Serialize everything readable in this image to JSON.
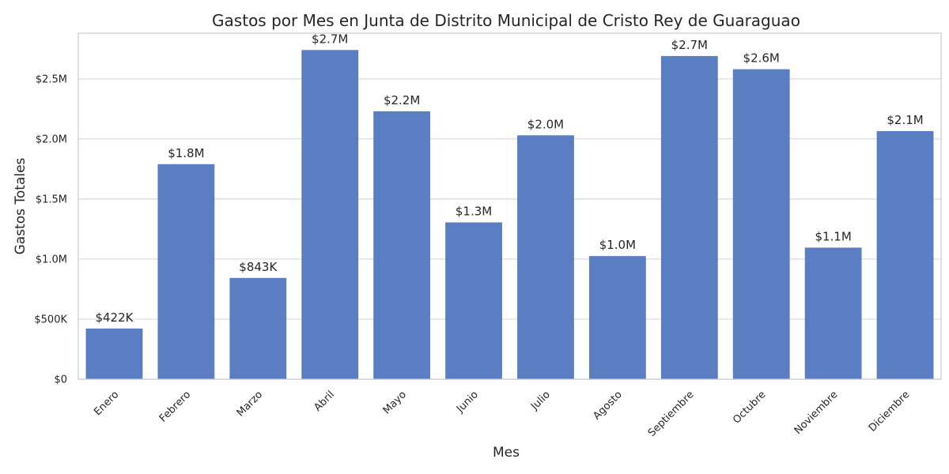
{
  "chart_data": {
    "type": "bar",
    "title": "Gastos por Mes en Junta de Distrito Municipal de Cristo Rey de Guaraguao",
    "xlabel": "Mes",
    "ylabel": "Gastos Totales",
    "categories": [
      "Enero",
      "Febrero",
      "Marzo",
      "Abril",
      "Mayo",
      "Junio",
      "Julio",
      "Agosto",
      "Septiembre",
      "Octubre",
      "Noviembre",
      "Diciembre"
    ],
    "values": [
      422000,
      1790000,
      843000,
      2740000,
      2230000,
      1305000,
      2030000,
      1025000,
      2690000,
      2580000,
      1095000,
      2065000
    ],
    "value_labels": [
      "$422K",
      "$1.8M",
      "$843K",
      "$2.7M",
      "$2.2M",
      "$1.3M",
      "$2.0M",
      "$1.0M",
      "$2.7M",
      "$2.6M",
      "$1.1M",
      "$2.1M"
    ],
    "y_ticks": [
      0,
      500000,
      1000000,
      1500000,
      2000000,
      2500000
    ],
    "y_tick_labels": [
      "$0",
      "$500K",
      "$1.0M",
      "$1.5M",
      "$2.0M",
      "$2.5M"
    ],
    "ylim": [
      0,
      2880000
    ],
    "grid": "horizontal",
    "bar_color": "#5b7ec2",
    "grid_color": "#d9d9d9",
    "axis_color": "#cccccc"
  }
}
